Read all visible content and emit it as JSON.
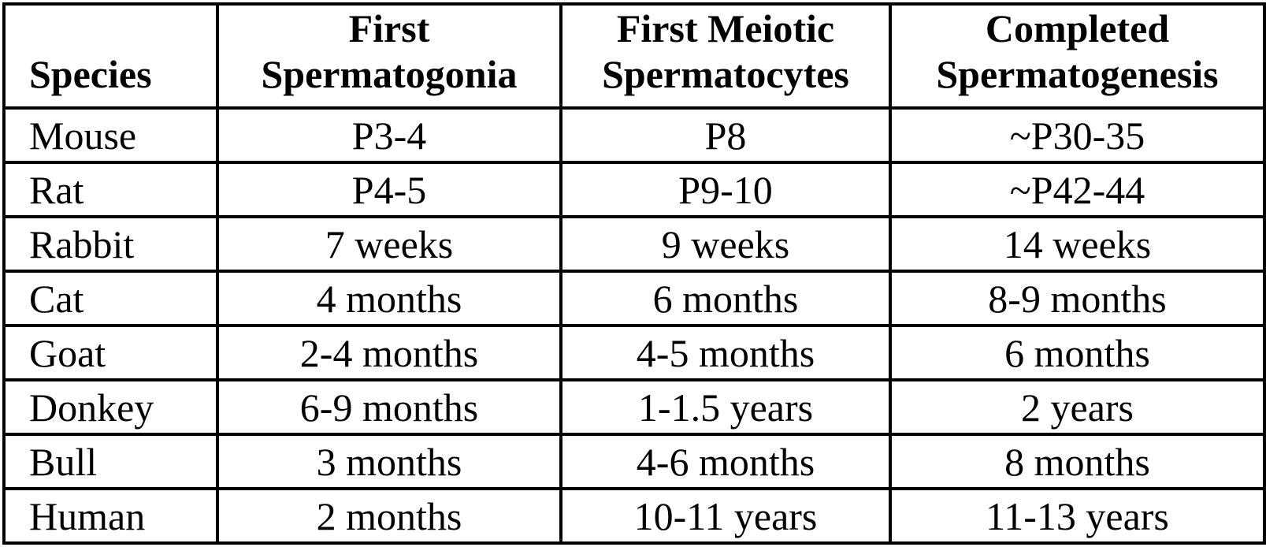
{
  "table": {
    "headers": [
      {
        "lines": [
          "Species"
        ]
      },
      {
        "lines": [
          "First",
          "Spermatogonia"
        ]
      },
      {
        "lines": [
          "First Meiotic",
          "Spermatocytes"
        ]
      },
      {
        "lines": [
          "Completed",
          "Spermatogenesis"
        ]
      }
    ],
    "rows": [
      [
        "Mouse",
        "P3-4",
        "P8",
        "~P30-35"
      ],
      [
        "Rat",
        "P4-5",
        "P9-10",
        "~P42-44"
      ],
      [
        "Rabbit",
        "7 weeks",
        "9 weeks",
        "14 weeks"
      ],
      [
        "Cat",
        "4 months",
        "6 months",
        "8-9 months"
      ],
      [
        "Goat",
        "2-4 months",
        "4-5 months",
        "6 months"
      ],
      [
        "Donkey",
        "6-9 months",
        "1-1.5 years",
        "2 years"
      ],
      [
        "Bull",
        "3 months",
        "4-6 months",
        "8 months"
      ],
      [
        "Human",
        "2 months",
        "10-11 years",
        "11-13 years"
      ]
    ]
  }
}
